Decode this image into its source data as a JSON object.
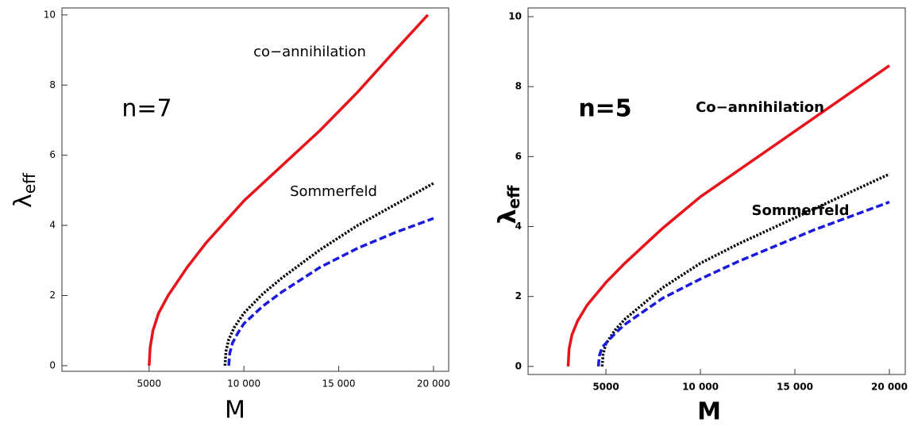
{
  "chart_data": [
    {
      "type": "line",
      "font_weight": "normal",
      "xlabel": "M",
      "ylabel": "λ",
      "ylabel_subscript": "eff",
      "annotations": [
        "n=7",
        "co−annihilation",
        "Sommerfeld"
      ],
      "xlim": [
        400,
        20800
      ],
      "ylim": [
        -0.16,
        10.2
      ],
      "xticks": [
        5000,
        {
          "value": 10000,
          "label": "10 000"
        },
        {
          "value": 15000,
          "label": "15 000"
        },
        {
          "value": 20000,
          "label": "20 000"
        }
      ],
      "yticks": [
        0,
        2,
        4,
        6,
        8,
        10
      ],
      "series": [
        {
          "color": "#e8141c",
          "style": "solid",
          "x": [
            5000,
            5050,
            5200,
            5500,
            6000,
            7000,
            8000,
            9000,
            10000,
            12000,
            14000,
            16000,
            18000,
            19700
          ],
          "values": [
            0,
            0.5,
            1.0,
            1.5,
            2.0,
            2.8,
            3.5,
            4.1,
            4.7,
            5.7,
            6.7,
            7.8,
            9.0,
            10.0
          ]
        },
        {
          "color": "#000000",
          "style": "dotted",
          "x": [
            9000,
            9050,
            9200,
            9500,
            10000,
            11000,
            12000,
            14000,
            16000,
            18000,
            20000
          ],
          "values": [
            0,
            0.4,
            0.75,
            1.1,
            1.5,
            2.05,
            2.5,
            3.3,
            4.0,
            4.6,
            5.2
          ]
        },
        {
          "color": "#1a1adc",
          "style": "dashed",
          "x": [
            9200,
            9250,
            9400,
            9700,
            10000,
            11000,
            12000,
            14000,
            16000,
            18000,
            20000
          ],
          "values": [
            0,
            0.35,
            0.65,
            0.95,
            1.2,
            1.7,
            2.1,
            2.8,
            3.35,
            3.8,
            4.2
          ]
        }
      ]
    },
    {
      "type": "line",
      "font_weight": "bold",
      "xlabel": "M",
      "ylabel": "λ",
      "ylabel_subscript": "eff",
      "annotations": [
        "n=5",
        "Co−annihilation",
        "Sommerfeld"
      ],
      "xlim": [
        880,
        20840
      ],
      "ylim": [
        -0.23,
        10.25
      ],
      "xticks": [
        5000,
        {
          "value": 10000,
          "label": "10 000"
        },
        {
          "value": 15000,
          "label": "15 000"
        },
        {
          "value": 20000,
          "label": "20 000"
        }
      ],
      "yticks": [
        0,
        2,
        4,
        6,
        8,
        10
      ],
      "series": [
        {
          "color": "#e8141c",
          "style": "solid",
          "x": [
            3000,
            3050,
            3200,
            3500,
            4000,
            5000,
            6000,
            8000,
            10000,
            12000,
            14000,
            16000,
            18000,
            20000
          ],
          "values": [
            0,
            0.5,
            0.9,
            1.3,
            1.75,
            2.4,
            2.95,
            3.95,
            4.85,
            5.6,
            6.35,
            7.1,
            7.85,
            8.6
          ]
        },
        {
          "color": "#000000",
          "style": "dotted",
          "x": [
            4800,
            4850,
            5000,
            5500,
            6000,
            8000,
            10000,
            12000,
            14000,
            16000,
            18000,
            20000
          ],
          "values": [
            0,
            0.35,
            0.65,
            1.05,
            1.35,
            2.25,
            2.95,
            3.5,
            4.0,
            4.5,
            5.0,
            5.5
          ]
        },
        {
          "color": "#1a1adc",
          "style": "dashed",
          "x": [
            4600,
            4650,
            4800,
            5500,
            6000,
            8000,
            10000,
            12000,
            14000,
            16000,
            18000,
            20000
          ],
          "values": [
            0,
            0.3,
            0.55,
            0.95,
            1.2,
            1.95,
            2.5,
            3.0,
            3.45,
            3.9,
            4.3,
            4.7
          ]
        }
      ]
    }
  ]
}
